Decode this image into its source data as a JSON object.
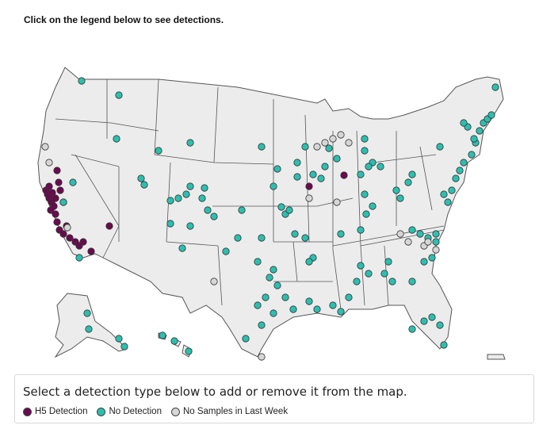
{
  "instruction": "Click on the legend below to see detections.",
  "legend": {
    "title": "Select a detection type below to add or remove it from the map.",
    "items": [
      {
        "key": "h5",
        "label": "H5 Detection",
        "color": "#6b0a4f"
      },
      {
        "key": "none",
        "label": "No Detection",
        "color": "#2bbfb0"
      },
      {
        "key": "nosample",
        "label": "No Samples in Last Week",
        "color": "#d6d6d6"
      }
    ]
  },
  "colors": {
    "land": "#ececec",
    "border": "#555555",
    "dot_outline": "#3a3a3a"
  }
}
